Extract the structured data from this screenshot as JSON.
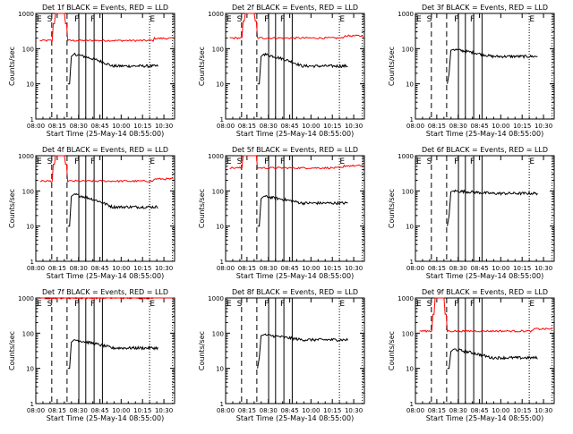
{
  "chart_data": [
    {
      "type": "line",
      "title": "Det 1f BLACK = Events, RED = LLD",
      "black_level": 32,
      "red_level": 170,
      "red_spike": true,
      "black_start": [
        10,
        10,
        60,
        70
      ]
    },
    {
      "type": "line",
      "title": "Det 2f BLACK = Events, RED = LLD",
      "black_level": 32,
      "red_level": 200,
      "red_spike": true,
      "black_start": [
        10,
        10,
        60,
        70
      ]
    },
    {
      "type": "line",
      "title": "Det 3f BLACK = Events, RED = LLD",
      "black_level": 60,
      "red_level": null,
      "red_spike": false,
      "black_start": [
        10,
        20,
        90,
        95
      ]
    },
    {
      "type": "line",
      "title": "Det 4f BLACK = Events, RED = LLD",
      "black_level": 35,
      "red_level": 190,
      "red_spike": true,
      "black_start": [
        10,
        10,
        70,
        80
      ]
    },
    {
      "type": "line",
      "title": "Det 5f BLACK = Events, RED = LLD",
      "black_level": 45,
      "red_level": 450,
      "red_spike": true,
      "black_start": [
        10,
        10,
        60,
        70
      ]
    },
    {
      "type": "line",
      "title": "Det 6f BLACK = Events, RED = LLD",
      "black_level": 85,
      "red_level": null,
      "red_spike": false,
      "black_start": [
        10,
        20,
        95,
        100
      ]
    },
    {
      "type": "line",
      "title": "Det 7f BLACK = Events, RED = LLD",
      "black_level": 38,
      "red_level": 1000,
      "red_spike": false,
      "black_start": [
        10,
        10,
        55,
        65
      ]
    },
    {
      "type": "line",
      "title": "Det 8f BLACK = Events, RED = LLD",
      "black_level": 65,
      "red_level": null,
      "red_spike": false,
      "black_start": [
        10,
        20,
        85,
        90
      ]
    },
    {
      "type": "line",
      "title": "Det 9f BLACK = Events, RED = LLD",
      "black_level": 20,
      "red_level": 115,
      "red_spike": true,
      "black_start": [
        10,
        10,
        30,
        35
      ]
    }
  ],
  "common": {
    "xlabel": "Start Time (25-May-14 08:55:00)",
    "ylabel": "Counts/sec",
    "xticks": [
      "08:00",
      "08:15",
      "08:30",
      "08:45",
      "10:00",
      "10:15",
      "10:30"
    ],
    "yticks": [
      "1",
      "10",
      "100",
      "1000"
    ],
    "ylim": [
      1,
      1000
    ],
    "log_y": true,
    "markers": [
      "E",
      "S",
      "F",
      "F",
      "E"
    ],
    "colors": {
      "events": "#000000",
      "lld": "#ff0000"
    }
  }
}
